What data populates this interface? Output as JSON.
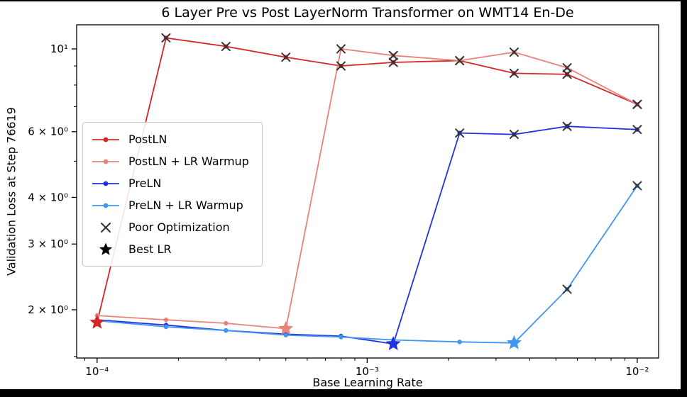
{
  "chart_data": {
    "type": "line",
    "title": "6 Layer Pre vs Post LayerNorm Transformer on WMT14 En-De",
    "xlabel": "Base Learning Rate",
    "ylabel": "Validation Loss at Step 76619",
    "x_scale": "log",
    "y_scale": "log",
    "xlim": [
      8.4e-05,
      0.012
    ],
    "ylim": [
      1.485,
      11.6
    ],
    "grid": false,
    "legend_position": "upper-left-inside",
    "x_ticks": [
      {
        "value": 0.0001,
        "label": "10⁻⁴"
      },
      {
        "value": 0.001,
        "label": "10⁻³"
      },
      {
        "value": 0.01,
        "label": "10⁻²"
      }
    ],
    "y_ticks": [
      {
        "value": 10,
        "label": "10¹"
      },
      {
        "value": 6,
        "label": "6 × 10⁰"
      },
      {
        "value": 4,
        "label": "4 × 10⁰"
      },
      {
        "value": 3,
        "label": "3 × 10⁰"
      },
      {
        "value": 2,
        "label": "2 × 10⁰"
      }
    ],
    "y_minor_ticks": [
      1.5,
      5,
      7,
      8,
      9
    ],
    "learning_rates": [
      0.0001,
      0.00018,
      0.0003,
      0.0005,
      0.0008,
      0.00125,
      0.0022,
      0.0035,
      0.0055,
      0.01
    ],
    "series": [
      {
        "name": "PostLN",
        "color": "#d62728",
        "values": [
          1.85,
          10.7,
          10.15,
          9.5,
          9.0,
          9.2,
          9.3,
          8.6,
          8.55,
          7.1
        ],
        "poor": [
          false,
          true,
          true,
          true,
          true,
          true,
          true,
          true,
          true,
          true
        ],
        "best_index": 0
      },
      {
        "name": "PostLN + LR Warmup",
        "color": "#e8837a",
        "values": [
          1.93,
          1.88,
          1.84,
          1.78,
          10.0,
          9.6,
          9.3,
          9.8,
          8.9,
          7.1
        ],
        "poor": [
          false,
          false,
          false,
          false,
          true,
          true,
          true,
          true,
          true,
          true
        ],
        "best_index": 3
      },
      {
        "name": "PreLN",
        "color": "#2233dd",
        "values": [
          1.88,
          1.82,
          1.76,
          1.72,
          1.7,
          1.62,
          5.95,
          5.9,
          6.2,
          6.08
        ],
        "poor": [
          false,
          false,
          false,
          false,
          false,
          false,
          true,
          true,
          true,
          true
        ],
        "best_index": 5
      },
      {
        "name": "PreLN + LR Warmup",
        "color": "#3f97f0",
        "values": [
          1.87,
          1.8,
          1.76,
          1.71,
          1.69,
          1.66,
          1.64,
          1.63,
          2.27,
          4.3
        ],
        "poor": [
          false,
          false,
          false,
          false,
          false,
          false,
          false,
          false,
          true,
          true
        ],
        "best_index": 7
      }
    ],
    "marker_legend": [
      {
        "label": "Poor Optimization",
        "type": "x",
        "color": "#333333"
      },
      {
        "label": "Best LR",
        "type": "star",
        "color": "#000000"
      }
    ]
  }
}
